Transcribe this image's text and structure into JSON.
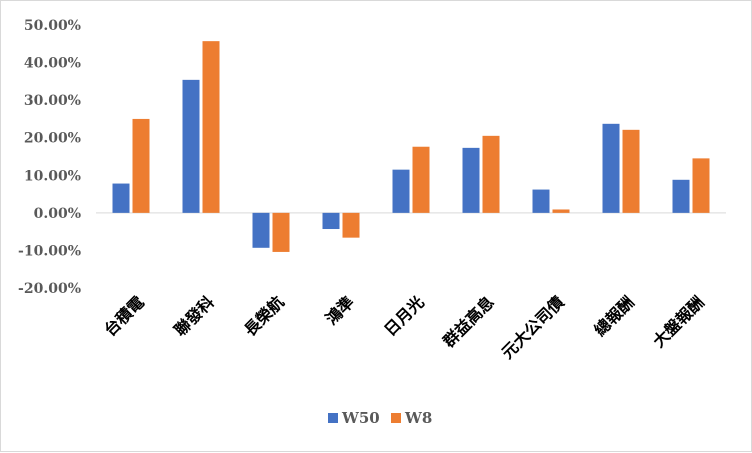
{
  "chart_data": {
    "type": "bar",
    "categories": [
      "台積電",
      "聯發科",
      "長榮航",
      "鴻準",
      "日月光",
      "群益高息",
      "元大公司債",
      "總報酬",
      "大盤報酬"
    ],
    "series": [
      {
        "name": "W50",
        "color": "#4472c4",
        "values": [
          7.8,
          35.4,
          -9.3,
          -4.3,
          11.5,
          17.3,
          6.2,
          23.7,
          8.8
        ]
      },
      {
        "name": "W8",
        "color": "#ed7d31",
        "values": [
          25.0,
          45.7,
          -10.4,
          -6.6,
          17.6,
          20.5,
          0.9,
          22.1,
          14.5
        ]
      }
    ],
    "yticks": [
      "50.00%",
      "40.00%",
      "30.00%",
      "20.00%",
      "10.00%",
      "0.00%",
      "-10.00%",
      "-20.00%"
    ],
    "ylim": [
      -20,
      50
    ],
    "legend_position": "bottom",
    "grid": false
  }
}
